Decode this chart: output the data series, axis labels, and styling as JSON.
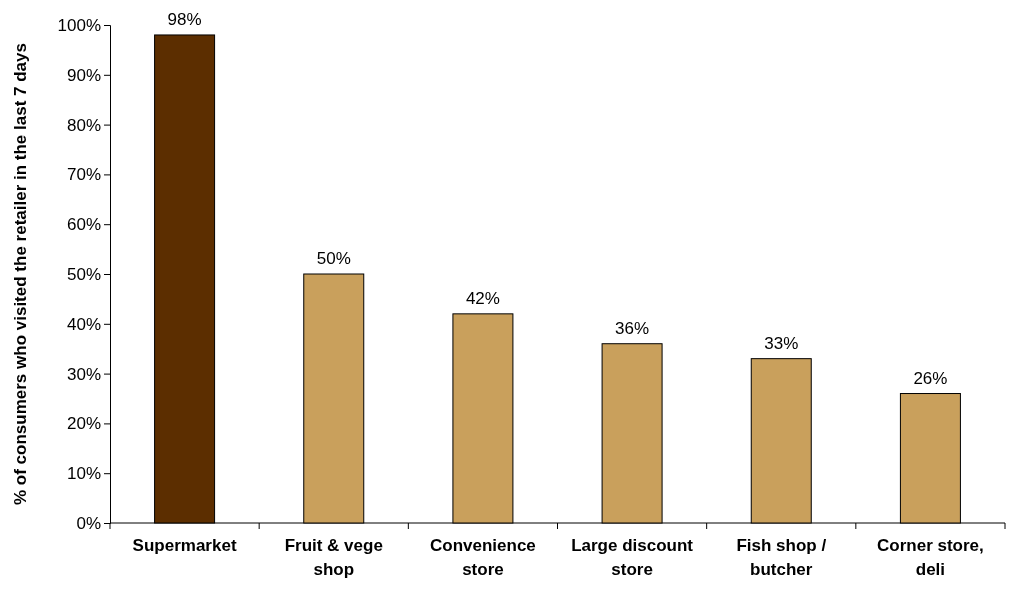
{
  "chart_data": {
    "type": "bar",
    "ylabel": "% of consumers who visited the retailer in the last 7 days",
    "categories": [
      "Supermarket",
      "Fruit & vege shop",
      "Convenience store",
      "Large discount store",
      "Fish shop / butcher",
      "Corner store, deli"
    ],
    "values": [
      98,
      50,
      42,
      36,
      33,
      26
    ],
    "colors": [
      "#5c2e00",
      "#c9a05c",
      "#c9a05c",
      "#c9a05c",
      "#c9a05c",
      "#c9a05c"
    ],
    "value_labels": [
      "98%",
      "50%",
      "42%",
      "36%",
      "33%",
      "26%"
    ],
    "ylim": [
      0,
      100
    ],
    "yticks": [
      {
        "value": 0,
        "label": "0%"
      },
      {
        "value": 10,
        "label": "10%"
      },
      {
        "value": 20,
        "label": "20%"
      },
      {
        "value": 30,
        "label": "30%"
      },
      {
        "value": 40,
        "label": "40%"
      },
      {
        "value": 50,
        "label": "50%"
      },
      {
        "value": 60,
        "label": "60%"
      },
      {
        "value": 70,
        "label": "70%"
      },
      {
        "value": 80,
        "label": "80%"
      },
      {
        "value": 90,
        "label": "90%"
      },
      {
        "value": 100,
        "label": "100%"
      }
    ],
    "grid": false
  }
}
